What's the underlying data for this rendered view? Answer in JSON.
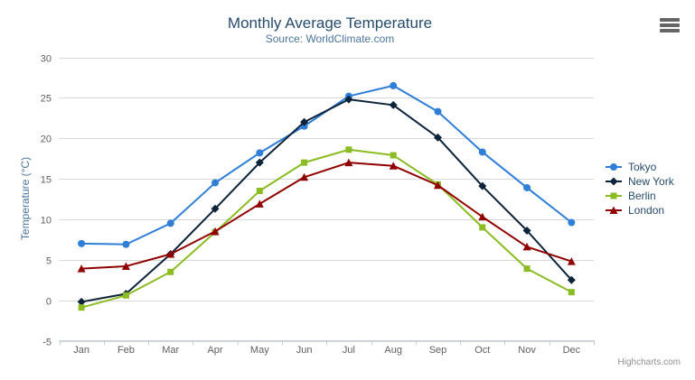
{
  "chart": {
    "title": "Monthly Average Temperature",
    "subtitle": "Source: WorldClimate.com",
    "y_axis_title": "Temperature (°C)",
    "credit": "Highcharts.com",
    "menu_icon": "hamburger-menu-icon"
  },
  "chart_data": {
    "type": "line",
    "title": "Monthly Average Temperature",
    "subtitle": "Source: WorldClimate.com",
    "categories": [
      "Jan",
      "Feb",
      "Mar",
      "Apr",
      "May",
      "Jun",
      "Jul",
      "Aug",
      "Sep",
      "Oct",
      "Nov",
      "Dec"
    ],
    "series": [
      {
        "name": "Tokyo",
        "color": "#2f7ed8",
        "marker": "circle",
        "values": [
          7.0,
          6.9,
          9.5,
          14.5,
          18.2,
          21.5,
          25.2,
          26.5,
          23.3,
          18.3,
          13.9,
          9.6
        ]
      },
      {
        "name": "New York",
        "color": "#0d233a",
        "marker": "diamond",
        "values": [
          -0.2,
          0.8,
          5.7,
          11.3,
          17.0,
          22.0,
          24.8,
          24.1,
          20.1,
          14.1,
          8.6,
          2.5
        ]
      },
      {
        "name": "Berlin",
        "color": "#8bbc21",
        "marker": "square",
        "values": [
          -0.9,
          0.6,
          3.5,
          8.4,
          13.5,
          17.0,
          18.6,
          17.9,
          14.3,
          9.0,
          3.9,
          1.0
        ]
      },
      {
        "name": "London",
        "color": "#910000",
        "marker": "triangle",
        "values": [
          3.9,
          4.2,
          5.7,
          8.5,
          11.9,
          15.2,
          17.0,
          16.6,
          14.2,
          10.3,
          6.6,
          4.8
        ]
      }
    ],
    "xlabel": "",
    "ylabel": "Temperature (°C)",
    "ylim": [
      -5,
      30
    ],
    "yticks": [
      -5,
      0,
      5,
      10,
      15,
      20,
      25,
      30
    ],
    "grid": true,
    "legend_position": "right"
  },
  "colors": {
    "title": "#274b6d",
    "subtitle": "#4d759e",
    "axis_label": "#606060",
    "axis_title": "#4d759e",
    "grid_line": "#d8d8d8",
    "axis_line": "#c0d0e0",
    "legend_text": "#274b6d",
    "credit": "#909090",
    "menu_icon": "#666666",
    "background": "#ffffff"
  }
}
